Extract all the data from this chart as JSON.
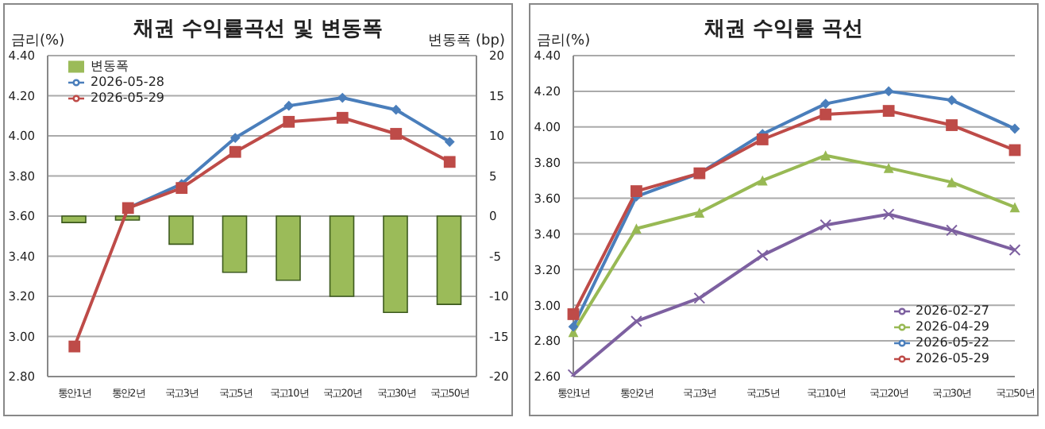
{
  "chart_data": [
    {
      "type": "line",
      "title": "채권 수익률곡선 및 변동폭",
      "ylabel": "금리(%)",
      "y2label": "변동폭 (bp)",
      "categories": [
        "통안1년",
        "통안2년",
        "국고3년",
        "국고5년",
        "국고10년",
        "국고20년",
        "국고30년",
        "국고50년"
      ],
      "series": [
        {
          "name": "변동폭",
          "type": "bar",
          "axis": "y2",
          "color": "#9bbb59",
          "values": [
            -0.8,
            -0.5,
            -3.5,
            -7,
            -8,
            -10,
            -12,
            -11
          ]
        },
        {
          "name": "2026-05-28",
          "type": "line",
          "color": "#4a7ebb",
          "marker": "diamond",
          "values": [
            null,
            3.64,
            3.76,
            3.99,
            4.15,
            4.19,
            4.13,
            3.97
          ]
        },
        {
          "name": "2026-05-29",
          "type": "line",
          "color": "#be4b48",
          "marker": "square",
          "values": [
            2.95,
            3.64,
            3.74,
            3.92,
            4.07,
            4.09,
            4.01,
            3.87
          ]
        }
      ],
      "ylim": [
        2.8,
        4.4
      ],
      "yticks": [
        {
          "value": 2.8,
          "label": "2.80"
        },
        {
          "value": 3.0,
          "label": "3.00"
        },
        {
          "value": 3.2,
          "label": "3.20"
        },
        {
          "value": 3.4,
          "label": "3.40"
        },
        {
          "value": 3.6,
          "label": "3.60"
        },
        {
          "value": 3.8,
          "label": "3.80"
        },
        {
          "value": 4.0,
          "label": "4.00"
        },
        {
          "value": 4.2,
          "label": "4.20"
        },
        {
          "value": 4.4,
          "label": "4.40"
        }
      ],
      "y2lim": [
        -20,
        20
      ],
      "y2ticks": [
        -20,
        -15,
        -10,
        -5,
        0,
        5,
        10,
        15,
        20
      ],
      "grid": "y",
      "legend": "top left",
      "line_style": "solid"
    },
    {
      "type": "line",
      "title": "채권 수익률 곡선",
      "ylabel": "금리(%)",
      "categories": [
        "통안1년",
        "통안2년",
        "국고3년",
        "국고5년",
        "국고10년",
        "국고20년",
        "국고30년",
        "국고50년"
      ],
      "series": [
        {
          "name": "2026-02-27",
          "color": "#7d60a0",
          "marker": "cross",
          "values": [
            2.61,
            2.91,
            3.04,
            3.28,
            3.45,
            3.51,
            3.42,
            3.31
          ]
        },
        {
          "name": "2026-04-29",
          "color": "#98b954",
          "marker": "triangle",
          "values": [
            2.85,
            3.43,
            3.52,
            3.7,
            3.84,
            3.77,
            3.69,
            3.55
          ]
        },
        {
          "name": "2026-05-22",
          "color": "#4a7ebb",
          "marker": "diamond",
          "values": [
            2.88,
            3.61,
            3.74,
            3.96,
            4.13,
            4.2,
            4.15,
            3.99
          ]
        },
        {
          "name": "2026-05-29",
          "color": "#be4b48",
          "marker": "square",
          "values": [
            2.95,
            3.64,
            3.74,
            3.93,
            4.07,
            4.09,
            4.01,
            3.87
          ]
        }
      ],
      "ylim": [
        2.6,
        4.4
      ],
      "yticks": [
        {
          "value": 2.6,
          "label": "2.60"
        },
        {
          "value": 2.8,
          "label": "2.80"
        },
        {
          "value": 3.0,
          "label": "3.00"
        },
        {
          "value": 3.2,
          "label": "3.20"
        },
        {
          "value": 3.4,
          "label": "3.40"
        },
        {
          "value": 3.6,
          "label": "3.60"
        },
        {
          "value": 3.8,
          "label": "3.80"
        },
        {
          "value": 4.0,
          "label": "4.00"
        },
        {
          "value": 4.2,
          "label": "4.20"
        },
        {
          "value": 4.4,
          "label": "4.40"
        }
      ],
      "grid": "y",
      "legend": "bottom right",
      "line_style": "solid"
    }
  ]
}
